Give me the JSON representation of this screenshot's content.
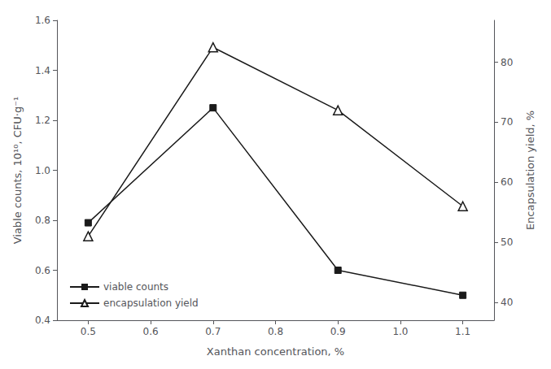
{
  "chart_data": {
    "type": "line",
    "x": [
      0.5,
      0.7,
      0.9,
      1.1
    ],
    "xlabel": "Xanthan concentration, %",
    "ylabel": "Viable counts, 10¹⁰, CFU·g⁻¹",
    "y2label": "Encapsulation yield, %",
    "series": [
      {
        "name": "viable counts",
        "color": "#1a1a1a",
        "marker": "square",
        "values": [
          0.79,
          1.25,
          0.6,
          0.5
        ]
      },
      {
        "name": "encapsulation yield",
        "color": "#1a1a1a",
        "marker": "triangle-open",
        "axis": "y2",
        "values": [
          51.0,
          82.5,
          72.0,
          56.0
        ]
      }
    ],
    "xlim": [
      0.45,
      1.15
    ],
    "xticks": [
      0.5,
      0.6,
      0.7,
      0.8,
      0.9,
      {
        "value": 1.0,
        "label": "1.0"
      },
      1.1
    ],
    "ylim": [
      0.4,
      1.6
    ],
    "yticks": [
      0.4,
      0.6,
      0.8,
      {
        "value": 1.0,
        "label": "1.0"
      },
      1.2,
      1.4,
      1.6
    ],
    "y2lim": [
      37,
      87
    ],
    "y2ticks": [
      40,
      50,
      60,
      70,
      80
    ],
    "grid": false,
    "legend": "lower left"
  }
}
